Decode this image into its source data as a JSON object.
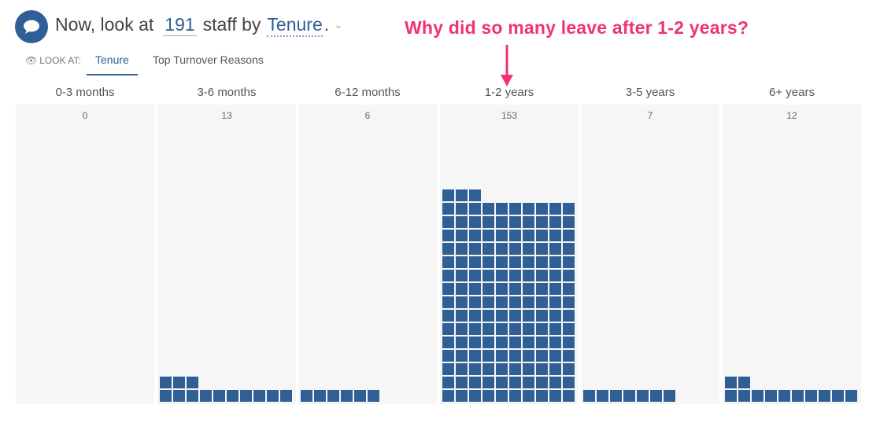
{
  "header": {
    "prefix": "Now, look at",
    "count": "191",
    "middle": "staff by",
    "dimension": "Tenure",
    "dot": ".",
    "icons": {
      "chat": "chat-bubble-icon",
      "dropdown": "chevron-down-icon"
    }
  },
  "callout": {
    "text": "Why did so many leave after 1-2 years?",
    "color": "#f0336f"
  },
  "lookat": {
    "label": "LOOK AT:",
    "icon": "eye-icon",
    "tabs": [
      {
        "label": "Tenure",
        "active": true
      },
      {
        "label": "Top Turnover Reasons",
        "active": false
      }
    ]
  },
  "colors": {
    "accent": "#2f5f95",
    "square": "#2f5f95",
    "panel": "#f6f6f6"
  },
  "chart_data": {
    "type": "bar",
    "categories": [
      "0-3 months",
      "3-6 months",
      "6-12 months",
      "1-2 years",
      "3-5 years",
      "6+ years"
    ],
    "values": [
      0,
      13,
      6,
      153,
      7,
      12
    ],
    "value_labels": [
      "0",
      "13",
      "6",
      "153",
      "7",
      "12"
    ],
    "squares_per_row": 10
  }
}
